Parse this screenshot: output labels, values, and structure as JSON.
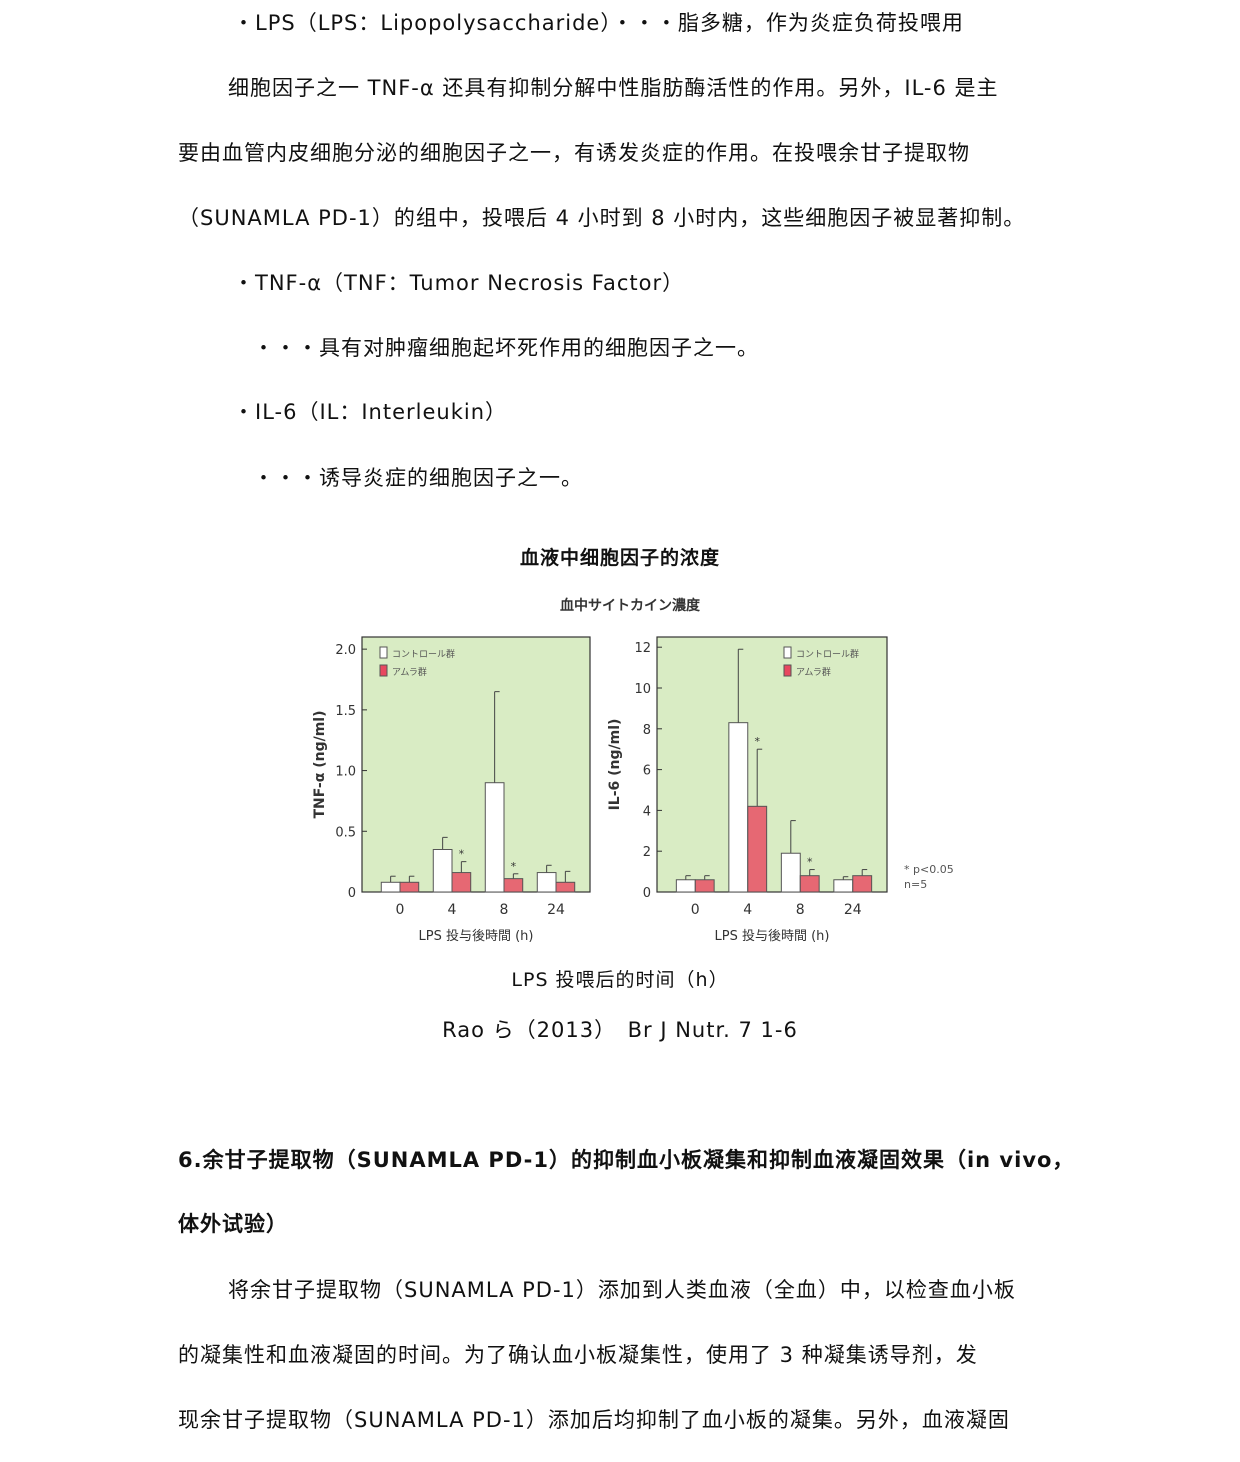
{
  "lines": [
    "・LPS（LPS：Lipopolysaccharide）・・・脂多糖，作为炎症负荷投喂用",
    "细胞因子之一 TNF-α 还具有抑制分解中性脂肪酶活性的作用。另外，IL-6 是主",
    "要由血管内皮细胞分泌的细胞因子之一，有诱发炎症的作用。在投喂余甘子提取物",
    "（SUNAMLA PD-1）的组中，投喂后 4 小时到 8 小时内，这些细胞因子被显著抑制。",
    "・TNF-α（TNF：Tumor Necrosis Factor）",
    "・・・具有对肿瘤细胞起坏死作用的细胞因子之一。",
    "・IL-6（IL：Interleukin）",
    "・・・诱导炎症的细胞因子之一。"
  ],
  "figure": {
    "caption": "血液中细胞因子的浓度",
    "xcaption": "LPS 投喂后的时间（h）",
    "citation": "Rao ら（2013）　Br J Nutr. 7 1-6"
  },
  "section": {
    "heading1": "6.余甘子提取物（SUNAMLA PD-1）的抑制血小板凝集和抑制血液凝固效果（in vivo，",
    "heading2": "体外试验）",
    "lines": [
      "将余甘子提取物（SUNAMLA PD-1）添加到人类血液（全血）中，以检查血小板",
      "的凝集性和血液凝固的时间。为了确认血小板凝集性，使用了 3 种凝集诱导剂，发",
      "现余甘子提取物（SUNAMLA PD-1）添加后均抑制了血小板的凝集。另外，血液凝固"
    ]
  },
  "chart_data": {
    "title": "血中サイトカイン濃度",
    "note": [
      "* p<0.05",
      "n=5"
    ],
    "colors": {
      "background": "#d9ecc4",
      "control": "#ffffff",
      "amura": "#e8475f"
    },
    "charts": [
      {
        "type": "bar",
        "ylabel": "TNF-α (ng/ml)",
        "xlabel": "LPS 投与後時間 (h)",
        "categories": [
          "0",
          "4",
          "8",
          "24"
        ],
        "ylim": [
          0,
          2.1
        ],
        "yticks": [
          "0",
          "0.5",
          "1.0",
          "1.5",
          "2.0"
        ],
        "ytick_values": [
          0,
          0.5,
          1.0,
          1.5,
          2.0
        ],
        "series": [
          {
            "name": "コントロール群",
            "values": [
              0.08,
              0.35,
              0.9,
              0.16
            ],
            "error_top": [
              0.13,
              0.45,
              1.65,
              0.22
            ]
          },
          {
            "name": "アムラ群",
            "values": [
              0.08,
              0.16,
              0.11,
              0.08
            ],
            "error_top": [
              0.13,
              0.25,
              0.15,
              0.17
            ],
            "significant": [
              false,
              true,
              true,
              false
            ]
          }
        ]
      },
      {
        "type": "bar",
        "ylabel": "IL-6 (ng/ml)",
        "xlabel": "LPS 投与後時間 (h)",
        "categories": [
          "0",
          "4",
          "8",
          "24"
        ],
        "ylim": [
          0,
          12.5
        ],
        "yticks": [
          "0",
          "2",
          "4",
          "6",
          "8",
          "10",
          "12"
        ],
        "ytick_values": [
          0,
          2,
          4,
          6,
          8,
          10,
          12
        ],
        "series": [
          {
            "name": "コントロール群",
            "values": [
              0.6,
              8.3,
              1.9,
              0.6
            ],
            "error_top": [
              0.8,
              11.9,
              3.5,
              0.75
            ]
          },
          {
            "name": "アムラ群",
            "values": [
              0.6,
              4.2,
              0.8,
              0.8
            ],
            "error_top": [
              0.8,
              7.0,
              1.1,
              1.1
            ],
            "significant": [
              false,
              true,
              true,
              false
            ]
          }
        ]
      }
    ]
  }
}
